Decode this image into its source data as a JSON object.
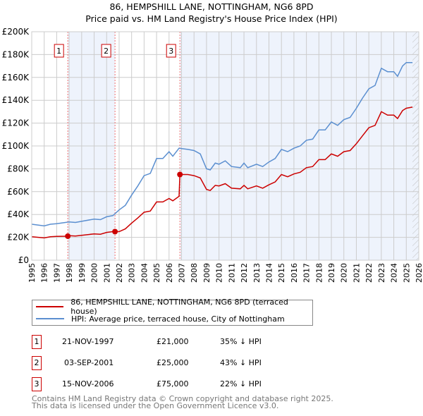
{
  "title_line1": "86, HEMPSHILL LANE, NOTTINGHAM, NG6 8PD",
  "title_line2": "Price paid vs. HM Land Registry's House Price Index (HPI)",
  "chart_data": {
    "type": "line",
    "title": "86, HEMPSHILL LANE, NOTTINGHAM, NG6 8PD — Price paid vs. HM Land Registry's House Price Index (HPI)",
    "xlim": [
      1995,
      2026
    ],
    "ylim": [
      0,
      200000
    ],
    "x_ticks": [
      "1995",
      "1996",
      "1997",
      "1998",
      "1999",
      "2000",
      "2001",
      "2002",
      "2003",
      "2004",
      "2005",
      "2006",
      "2007",
      "2008",
      "2009",
      "2010",
      "2011",
      "2012",
      "2013",
      "2014",
      "2015",
      "2016",
      "2017",
      "2018",
      "2019",
      "2020",
      "2021",
      "2022",
      "2023",
      "2024",
      "2025",
      "2026"
    ],
    "y_ticks": [
      0,
      20000,
      40000,
      60000,
      80000,
      100000,
      120000,
      140000,
      160000,
      180000,
      200000
    ],
    "y_tick_labels": [
      "£0",
      "£20K",
      "£40K",
      "£60K",
      "£80K",
      "£100K",
      "£120K",
      "£140K",
      "£160K",
      "£180K",
      "£200K"
    ],
    "grid": true,
    "hatched_from": 2025.5,
    "series": [
      {
        "name": "86, HEMPSHILL LANE, NOTTINGHAM, NG6 8PD (terraced house)",
        "color": "#cc0000",
        "x": [
          1995,
          1996,
          1996.5,
          1997,
          1997.9,
          1998,
          1998.5,
          1999,
          2000,
          2000.5,
          2001,
          2001.5,
          2001.67,
          2002,
          2002.5,
          2003,
          2003.5,
          2004,
          2004.5,
          2005,
          2005.5,
          2006,
          2006.3,
          2006.8,
          2006.87,
          2007.5,
          2008,
          2008.5,
          2009,
          2009.3,
          2009.7,
          2010,
          2010.5,
          2011,
          2011.7,
          2012,
          2012.3,
          2013,
          2013.5,
          2014,
          2014.5,
          2015,
          2015.5,
          2016,
          2016.5,
          2017,
          2017.5,
          2018,
          2018.5,
          2019,
          2019.5,
          2020,
          2020.5,
          2021,
          2021.5,
          2022,
          2022.5,
          2023,
          2023.5,
          2024,
          2024.3,
          2024.7,
          2025,
          2025.5
        ],
        "y": [
          20500,
          19500,
          20500,
          20800,
          21000,
          21400,
          21100,
          21800,
          23000,
          22700,
          24300,
          25000,
          25000,
          25000,
          27400,
          32500,
          37000,
          42000,
          43000,
          51000,
          51000,
          54000,
          52000,
          56000,
          75000,
          75000,
          74000,
          72000,
          62000,
          61000,
          65500,
          65000,
          67000,
          63000,
          62500,
          65500,
          62500,
          65000,
          63000,
          66000,
          68500,
          75000,
          73000,
          75500,
          77000,
          81000,
          82000,
          88000,
          88000,
          93000,
          91000,
          95000,
          96000,
          102000,
          109000,
          116000,
          118000,
          130000,
          127000,
          127000,
          124000,
          131000,
          133000,
          134000
        ]
      },
      {
        "name": "HPI: Average price, terraced house, City of Nottingham",
        "color": "#5b8fd0",
        "x": [
          1995,
          1996,
          1996.5,
          1997,
          1998,
          1998.5,
          1999,
          2000,
          2000.5,
          2001,
          2001.5,
          2002,
          2002.5,
          2003,
          2003.5,
          2004,
          2004.5,
          2005,
          2005.5,
          2006,
          2006.3,
          2006.8,
          2007.5,
          2008,
          2008.5,
          2009,
          2009.3,
          2009.7,
          2010,
          2010.5,
          2011,
          2011.7,
          2012,
          2012.3,
          2013,
          2013.5,
          2014,
          2014.5,
          2015,
          2015.5,
          2016,
          2016.5,
          2017,
          2017.5,
          2018,
          2018.5,
          2019,
          2019.5,
          2020,
          2020.5,
          2021,
          2021.5,
          2022,
          2022.5,
          2023,
          2023.5,
          2024,
          2024.3,
          2024.7,
          2025,
          2025.5
        ],
        "y": [
          31500,
          30000,
          31500,
          32000,
          33500,
          33000,
          34000,
          36000,
          35500,
          38000,
          39000,
          44000,
          48000,
          57000,
          65000,
          74000,
          76000,
          89000,
          89000,
          95000,
          91000,
          98000,
          97000,
          96000,
          93000,
          80000,
          79000,
          85000,
          84000,
          87000,
          82000,
          81000,
          85000,
          81000,
          84000,
          82000,
          86000,
          89000,
          97000,
          95000,
          98000,
          100000,
          105000,
          106000,
          114000,
          114000,
          121000,
          118000,
          123000,
          125000,
          133000,
          142000,
          150000,
          153000,
          168000,
          165000,
          165000,
          161000,
          170000,
          173000,
          173000
        ]
      }
    ],
    "sales": [
      {
        "num": "1",
        "x": 1997.89,
        "y": 21000
      },
      {
        "num": "2",
        "x": 2001.67,
        "y": 25000
      },
      {
        "num": "3",
        "x": 2006.87,
        "y": 75000
      }
    ]
  },
  "legend": {
    "property": "86, HEMPSHILL LANE, NOTTINGHAM, NG6 8PD (terraced house)",
    "hpi": "HPI: Average price, terraced house, City of Nottingham"
  },
  "transactions": [
    {
      "num": "1",
      "date": "21-NOV-1997",
      "price": "£21,000",
      "delta": "35% ↓ HPI"
    },
    {
      "num": "2",
      "date": "03-SEP-2001",
      "price": "£25,000",
      "delta": "43% ↓ HPI"
    },
    {
      "num": "3",
      "date": "15-NOV-2006",
      "price": "£75,000",
      "delta": "22% ↓ HPI"
    }
  ],
  "footer": {
    "line1": "Contains HM Land Registry data © Crown copyright and database right 2025.",
    "line2": "This data is licensed under the Open Government Licence v3.0."
  }
}
